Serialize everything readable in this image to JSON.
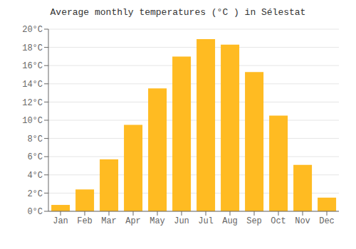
{
  "chart_data": {
    "type": "bar",
    "title": "Average monthly temperatures (°C ) in Sélestat",
    "categories": [
      "Jan",
      "Feb",
      "Mar",
      "Apr",
      "May",
      "Jun",
      "Jul",
      "Aug",
      "Sep",
      "Oct",
      "Nov",
      "Dec"
    ],
    "values": [
      0.7,
      2.4,
      5.7,
      9.5,
      13.5,
      17.0,
      18.9,
      18.3,
      15.3,
      10.5,
      5.1,
      1.5
    ],
    "color": "#FFBB22",
    "ylim": [
      0,
      20
    ],
    "yticks": [
      {
        "value": 0,
        "label": "0°C"
      },
      {
        "value": 2,
        "label": "2°C"
      },
      {
        "value": 4,
        "label": "4°C"
      },
      {
        "value": 6,
        "label": "6°C"
      },
      {
        "value": 8,
        "label": "8°C"
      },
      {
        "value": 10,
        "label": "10°C"
      },
      {
        "value": 12,
        "label": "12°C"
      },
      {
        "value": 14,
        "label": "14°C"
      },
      {
        "value": 16,
        "label": "16°C"
      },
      {
        "value": 18,
        "label": "18°C"
      },
      {
        "value": 20,
        "label": "20°C"
      }
    ],
    "grid": true
  }
}
